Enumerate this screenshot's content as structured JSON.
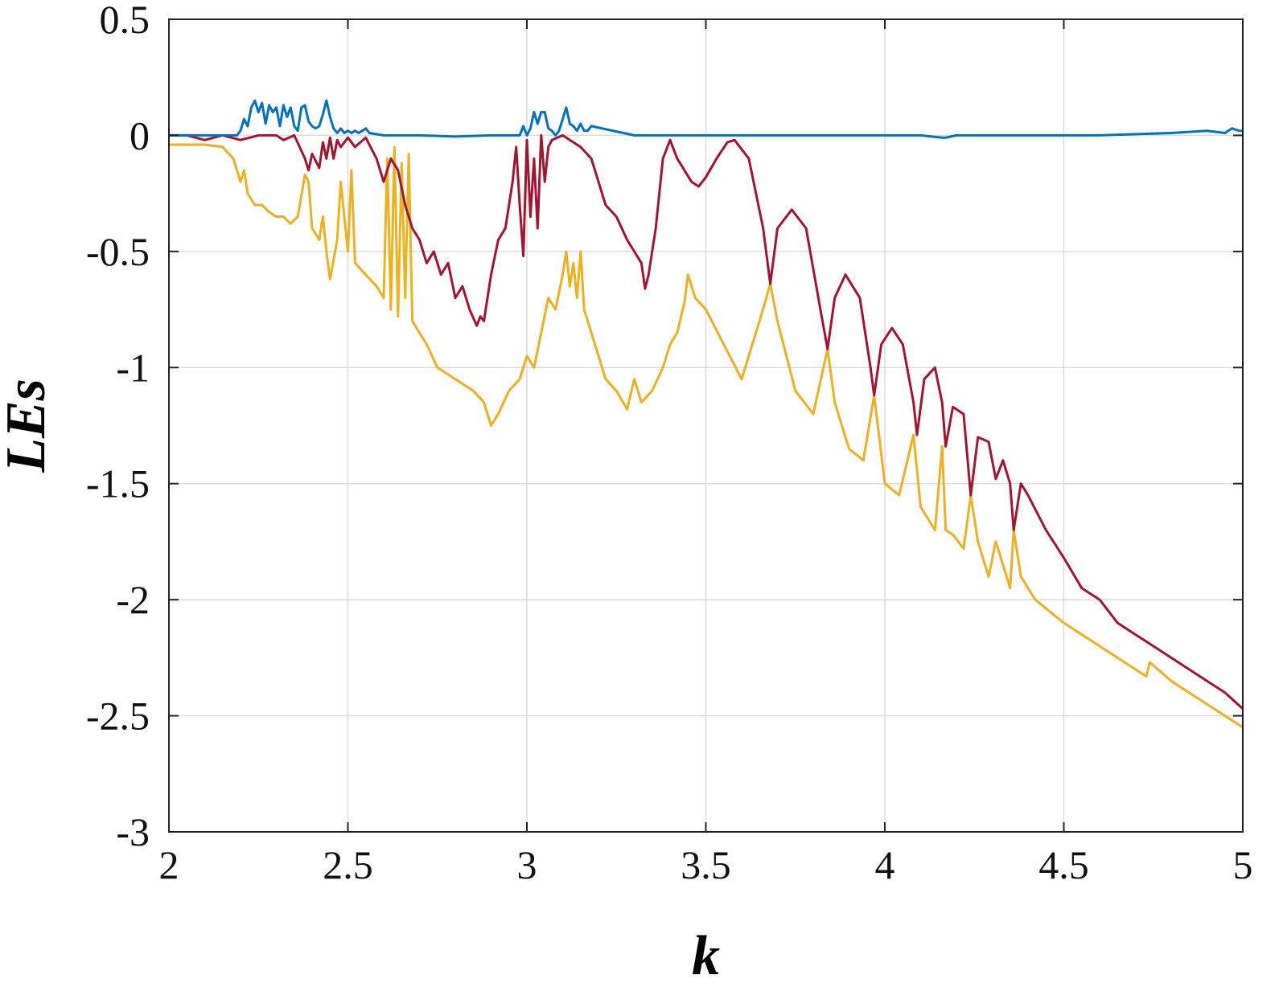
{
  "chart_data": {
    "type": "line",
    "title": "",
    "xlabel": "k",
    "ylabel": "LEs",
    "xlim": [
      2,
      5
    ],
    "ylim": [
      -3,
      0.5
    ],
    "grid": true,
    "xticks": [
      2,
      2.5,
      3,
      3.5,
      4,
      4.5,
      5
    ],
    "xtick_labels": [
      "2",
      "2.5",
      "3",
      "3.5",
      "4",
      "4.5",
      "5"
    ],
    "yticks": [
      0.5,
      0,
      -0.5,
      -1,
      -1.5,
      -2,
      -2.5,
      -3
    ],
    "ytick_labels": [
      "0.5",
      "0",
      "-0.5",
      "-1",
      "-1.5",
      "-2",
      "-2.5",
      "-3"
    ],
    "series": [
      {
        "color": "#0072BD",
        "x": [
          2.0,
          2.19,
          2.2,
          2.21,
          2.22,
          2.23,
          2.24,
          2.25,
          2.26,
          2.27,
          2.28,
          2.29,
          2.3,
          2.31,
          2.32,
          2.33,
          2.34,
          2.35,
          2.36,
          2.37,
          2.38,
          2.39,
          2.4,
          2.41,
          2.42,
          2.43,
          2.44,
          2.45,
          2.46,
          2.47,
          2.48,
          2.49,
          2.5,
          2.51,
          2.52,
          2.53,
          2.54,
          2.55,
          2.56,
          2.6,
          2.7,
          2.8,
          2.9,
          2.98,
          2.99,
          3.0,
          3.01,
          3.02,
          3.03,
          3.04,
          3.05,
          3.06,
          3.07,
          3.08,
          3.09,
          3.1,
          3.11,
          3.12,
          3.13,
          3.14,
          3.15,
          3.16,
          3.17,
          3.18,
          3.3,
          3.5,
          3.7,
          3.9,
          4.1,
          4.16,
          4.17,
          4.2,
          4.4,
          4.6,
          4.8,
          4.9,
          4.95,
          4.97,
          4.99,
          5.0
        ],
        "y": [
          0.0,
          0.0,
          0.02,
          0.07,
          0.04,
          0.12,
          0.15,
          0.1,
          0.14,
          0.05,
          0.13,
          0.1,
          0.12,
          0.04,
          0.13,
          0.08,
          0.12,
          0.04,
          0.02,
          0.12,
          0.13,
          0.06,
          0.04,
          0.03,
          0.04,
          0.09,
          0.15,
          0.08,
          0.03,
          0.01,
          0.03,
          0.01,
          0.02,
          0.01,
          0.02,
          0.01,
          0.02,
          0.03,
          0.01,
          0.0,
          0.0,
          -0.005,
          0.0,
          0.0,
          0.04,
          0.0,
          0.03,
          0.1,
          0.05,
          0.1,
          0.1,
          0.03,
          0.02,
          0.0,
          0.02,
          0.07,
          0.12,
          0.05,
          0.04,
          0.02,
          0.05,
          0.02,
          0.02,
          0.04,
          0.0,
          0.0,
          0.0,
          0.0,
          0.0,
          -0.01,
          -0.01,
          0.0,
          0.0,
          0.0,
          0.01,
          0.02,
          0.01,
          0.03,
          0.02,
          0.02
        ]
      },
      {
        "color": "#A2142F",
        "x": [
          2.0,
          2.05,
          2.1,
          2.15,
          2.2,
          2.25,
          2.3,
          2.32,
          2.35,
          2.38,
          2.39,
          2.4,
          2.42,
          2.43,
          2.44,
          2.45,
          2.46,
          2.47,
          2.48,
          2.5,
          2.52,
          2.55,
          2.58,
          2.6,
          2.62,
          2.64,
          2.66,
          2.68,
          2.7,
          2.72,
          2.74,
          2.76,
          2.78,
          2.8,
          2.82,
          2.84,
          2.86,
          2.87,
          2.88,
          2.9,
          2.92,
          2.94,
          2.96,
          2.97,
          2.98,
          2.99,
          3.0,
          3.01,
          3.02,
          3.03,
          3.04,
          3.05,
          3.06,
          3.07,
          3.1,
          3.15,
          3.18,
          3.2,
          3.22,
          3.25,
          3.28,
          3.3,
          3.32,
          3.33,
          3.34,
          3.36,
          3.38,
          3.4,
          3.42,
          3.44,
          3.46,
          3.48,
          3.5,
          3.53,
          3.56,
          3.58,
          3.62,
          3.66,
          3.68,
          3.7,
          3.74,
          3.78,
          3.82,
          3.84,
          3.86,
          3.89,
          3.93,
          3.96,
          3.97,
          3.99,
          4.02,
          4.05,
          4.08,
          4.09,
          4.11,
          4.14,
          4.16,
          4.17,
          4.19,
          4.22,
          4.24,
          4.26,
          4.29,
          4.31,
          4.33,
          4.35,
          4.36,
          4.38,
          4.4,
          4.45,
          4.5,
          4.55,
          4.6,
          4.65,
          4.7,
          4.75,
          4.8,
          4.85,
          4.9,
          4.95,
          5.0
        ],
        "y": [
          0.0,
          0.0,
          -0.02,
          0.0,
          -0.02,
          0.0,
          0.0,
          -0.02,
          0.0,
          -0.1,
          -0.15,
          -0.08,
          -0.14,
          -0.03,
          -0.1,
          -0.01,
          -0.1,
          -0.02,
          -0.05,
          -0.01,
          -0.05,
          -0.01,
          -0.1,
          -0.2,
          -0.1,
          -0.15,
          -0.3,
          -0.4,
          -0.45,
          -0.55,
          -0.5,
          -0.6,
          -0.55,
          -0.7,
          -0.65,
          -0.75,
          -0.82,
          -0.78,
          -0.8,
          -0.6,
          -0.45,
          -0.4,
          -0.2,
          -0.05,
          -0.3,
          -0.52,
          -0.02,
          -0.35,
          -0.1,
          -0.4,
          0.0,
          -0.2,
          -0.05,
          -0.02,
          0.0,
          -0.05,
          -0.1,
          -0.2,
          -0.3,
          -0.35,
          -0.45,
          -0.5,
          -0.55,
          -0.66,
          -0.6,
          -0.4,
          -0.1,
          -0.02,
          -0.1,
          -0.15,
          -0.2,
          -0.22,
          -0.18,
          -0.1,
          -0.03,
          -0.02,
          -0.1,
          -0.4,
          -0.64,
          -0.4,
          -0.32,
          -0.4,
          -0.75,
          -0.92,
          -0.7,
          -0.6,
          -0.7,
          -1.0,
          -1.12,
          -0.9,
          -0.83,
          -0.9,
          -1.15,
          -1.29,
          -1.05,
          -1.0,
          -1.15,
          -1.34,
          -1.17,
          -1.2,
          -1.55,
          -1.3,
          -1.32,
          -1.48,
          -1.4,
          -1.5,
          -1.7,
          -1.5,
          -1.55,
          -1.7,
          -1.82,
          -1.95,
          -2.0,
          -2.1,
          -2.15,
          -2.2,
          -2.25,
          -2.3,
          -2.35,
          -2.4,
          -2.47
        ]
      },
      {
        "color": "#EDB120",
        "x": [
          2.0,
          2.05,
          2.1,
          2.15,
          2.18,
          2.2,
          2.21,
          2.22,
          2.24,
          2.26,
          2.28,
          2.3,
          2.32,
          2.34,
          2.36,
          2.38,
          2.39,
          2.4,
          2.42,
          2.43,
          2.44,
          2.45,
          2.47,
          2.48,
          2.5,
          2.51,
          2.52,
          2.55,
          2.58,
          2.6,
          2.61,
          2.62,
          2.63,
          2.64,
          2.65,
          2.66,
          2.67,
          2.68,
          2.7,
          2.72,
          2.75,
          2.8,
          2.85,
          2.88,
          2.9,
          2.92,
          2.95,
          2.98,
          3.0,
          3.02,
          3.04,
          3.06,
          3.08,
          3.1,
          3.11,
          3.12,
          3.13,
          3.14,
          3.15,
          3.16,
          3.18,
          3.2,
          3.22,
          3.25,
          3.28,
          3.3,
          3.32,
          3.35,
          3.38,
          3.4,
          3.42,
          3.44,
          3.45,
          3.47,
          3.5,
          3.55,
          3.6,
          3.65,
          3.68,
          3.7,
          3.75,
          3.8,
          3.84,
          3.86,
          3.9,
          3.94,
          3.97,
          4.0,
          4.04,
          4.08,
          4.1,
          4.14,
          4.16,
          4.17,
          4.19,
          4.22,
          4.24,
          4.26,
          4.29,
          4.31,
          4.33,
          4.35,
          4.36,
          4.38,
          4.42,
          4.46,
          4.5,
          4.55,
          4.6,
          4.65,
          4.7,
          4.73,
          4.74,
          4.8,
          4.85,
          4.9,
          4.95,
          5.0
        ],
        "y": [
          -0.04,
          -0.04,
          -0.04,
          -0.05,
          -0.1,
          -0.2,
          -0.15,
          -0.25,
          -0.3,
          -0.3,
          -0.33,
          -0.35,
          -0.35,
          -0.38,
          -0.35,
          -0.17,
          -0.2,
          -0.4,
          -0.45,
          -0.35,
          -0.5,
          -0.62,
          -0.45,
          -0.2,
          -0.5,
          -0.15,
          -0.55,
          -0.6,
          -0.65,
          -0.7,
          -0.1,
          -0.75,
          -0.05,
          -0.78,
          -0.12,
          -0.7,
          -0.08,
          -0.8,
          -0.85,
          -0.9,
          -1.0,
          -1.05,
          -1.1,
          -1.15,
          -1.25,
          -1.2,
          -1.1,
          -1.05,
          -0.95,
          -1.0,
          -0.85,
          -0.7,
          -0.75,
          -0.6,
          -0.5,
          -0.65,
          -0.55,
          -0.7,
          -0.5,
          -0.75,
          -0.85,
          -0.95,
          -1.05,
          -1.1,
          -1.18,
          -1.05,
          -1.15,
          -1.1,
          -1.0,
          -0.9,
          -0.85,
          -0.72,
          -0.6,
          -0.7,
          -0.75,
          -0.9,
          -1.05,
          -0.8,
          -0.64,
          -0.8,
          -1.1,
          -1.2,
          -0.92,
          -1.15,
          -1.35,
          -1.4,
          -1.12,
          -1.5,
          -1.55,
          -1.29,
          -1.6,
          -1.7,
          -1.34,
          -1.7,
          -1.72,
          -1.78,
          -1.55,
          -1.75,
          -1.9,
          -1.75,
          -1.85,
          -1.95,
          -1.7,
          -1.9,
          -2.0,
          -2.05,
          -2.1,
          -2.15,
          -2.2,
          -2.25,
          -2.3,
          -2.33,
          -2.27,
          -2.35,
          -2.4,
          -2.45,
          -2.5,
          -2.55
        ]
      }
    ]
  }
}
